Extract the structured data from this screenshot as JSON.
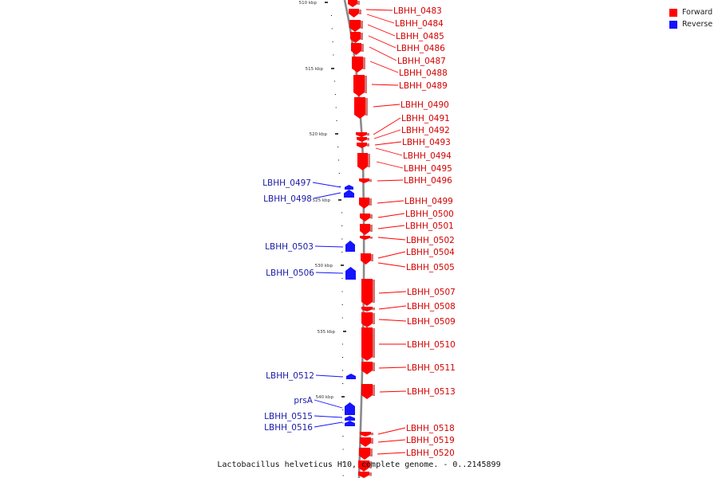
{
  "colors": {
    "forward": "#ff0000",
    "reverse": "#1414ff",
    "forward_text": "#d40000",
    "reverse_text": "#1a1aa8",
    "backbone": "#808080"
  },
  "legend": [
    {
      "label": "Forward",
      "strand": "forward"
    },
    {
      "label": "Reverse",
      "strand": "reverse"
    }
  ],
  "caption": "Lactobacillus helveticus H10, complete genome. - 0..2145899",
  "ruler": [
    "510 kbp",
    "515 kbp",
    "520 kbp",
    "525 kbp",
    "530 kbp",
    "535 kbp",
    "540 kbp"
  ],
  "genes_forward": [
    "LBHH_0483",
    "LBHH_0484",
    "LBHH_0485",
    "LBHH_0486",
    "LBHH_0487",
    "LBHH_0488",
    "LBHH_0489",
    "LBHH_0490",
    "LBHH_0491",
    "LBHH_0492",
    "LBHH_0493",
    "LBHH_0494",
    "LBHH_0495",
    "LBHH_0496",
    "LBHH_0499",
    "LBHH_0500",
    "LBHH_0501",
    "LBHH_0502",
    "LBHH_0504",
    "LBHH_0505",
    "LBHH_0507",
    "LBHH_0508",
    "LBHH_0509",
    "LBHH_0510",
    "LBHH_0511",
    "LBHH_0513",
    "LBHH_0518",
    "LBHH_0519",
    "LBHH_0520"
  ],
  "genes_reverse": [
    "LBHH_0497",
    "LBHH_0498",
    "LBHH_0503",
    "LBHH_0506",
    "LBHH_0512",
    "prsA",
    "LBHH_0515",
    "LBHH_0516"
  ]
}
